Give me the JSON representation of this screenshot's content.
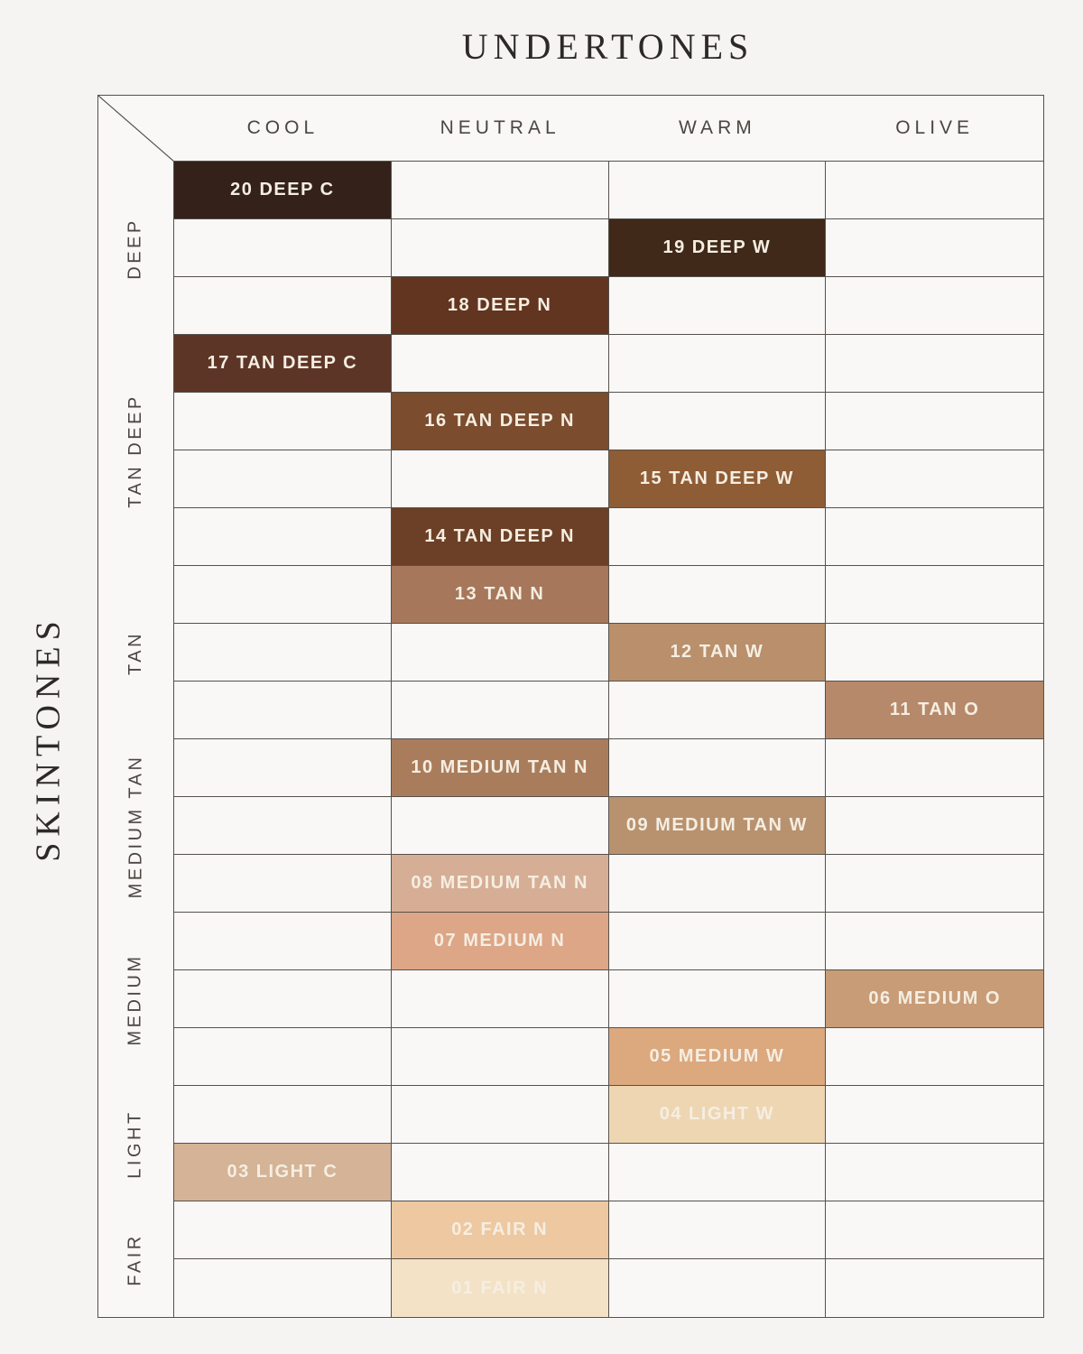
{
  "title": "UNDERTONES",
  "side_title": "SKINTONES",
  "chart_data": {
    "type": "table",
    "title": "UNDERTONES",
    "row_axis_label": "SKINTONES",
    "columns": [
      "COOL",
      "NEUTRAL",
      "WARM",
      "OLIVE"
    ],
    "row_groups": [
      {
        "label": "DEEP",
        "row_count": 3
      },
      {
        "label": "TAN DEEP",
        "row_count": 4
      },
      {
        "label": "TAN",
        "row_count": 3
      },
      {
        "label": "MEDIUM TAN",
        "row_count": 3
      },
      {
        "label": "MEDIUM",
        "row_count": 3
      },
      {
        "label": "LIGHT",
        "row_count": 2
      },
      {
        "label": "FAIR",
        "row_count": 2
      }
    ],
    "shades": [
      {
        "row": 1,
        "group": "DEEP",
        "column": "COOL",
        "label": "20 DEEP C",
        "color": "#33211a"
      },
      {
        "row": 2,
        "group": "DEEP",
        "column": "WARM",
        "label": "19 DEEP W",
        "color": "#402918"
      },
      {
        "row": 3,
        "group": "DEEP",
        "column": "NEUTRAL",
        "label": "18 DEEP N",
        "color": "#623520"
      },
      {
        "row": 4,
        "group": "TAN DEEP",
        "column": "COOL",
        "label": "17 TAN DEEP C",
        "color": "#5d3526"
      },
      {
        "row": 5,
        "group": "TAN DEEP",
        "column": "NEUTRAL",
        "label": "16 TAN DEEP N",
        "color": "#7b4c2e"
      },
      {
        "row": 6,
        "group": "TAN DEEP",
        "column": "WARM",
        "label": "15 TAN DEEP W",
        "color": "#8e5c35"
      },
      {
        "row": 7,
        "group": "TAN DEEP",
        "column": "NEUTRAL",
        "label": "14 TAN DEEP N",
        "color": "#6c4026"
      },
      {
        "row": 8,
        "group": "TAN",
        "column": "NEUTRAL",
        "label": "13 TAN N",
        "color": "#a6775b"
      },
      {
        "row": 9,
        "group": "TAN",
        "column": "WARM",
        "label": "12 TAN W",
        "color": "#b98f6c"
      },
      {
        "row": 10,
        "group": "TAN",
        "column": "OLIVE",
        "label": "11 TAN O",
        "color": "#b6896b"
      },
      {
        "row": 11,
        "group": "MEDIUM TAN",
        "column": "NEUTRAL",
        "label": "10 MEDIUM TAN N",
        "color": "#a97d5c"
      },
      {
        "row": 12,
        "group": "MEDIUM TAN",
        "column": "WARM",
        "label": "09 MEDIUM TAN W",
        "color": "#b8926f"
      },
      {
        "row": 13,
        "group": "MEDIUM TAN",
        "column": "NEUTRAL",
        "label": "08 MEDIUM TAN N",
        "color": "#d6ae95"
      },
      {
        "row": 14,
        "group": "MEDIUM",
        "column": "NEUTRAL",
        "label": "07 MEDIUM N",
        "color": "#dca687"
      },
      {
        "row": 15,
        "group": "MEDIUM",
        "column": "OLIVE",
        "label": "06 MEDIUM O",
        "color": "#c89c77"
      },
      {
        "row": 16,
        "group": "MEDIUM",
        "column": "WARM",
        "label": "05 MEDIUM W",
        "color": "#dca87e"
      },
      {
        "row": 17,
        "group": "LIGHT",
        "column": "WARM",
        "label": "04 LIGHT W",
        "color": "#eed6b2"
      },
      {
        "row": 18,
        "group": "LIGHT",
        "column": "COOL",
        "label": "03 LIGHT C",
        "color": "#d5b396"
      },
      {
        "row": 19,
        "group": "FAIR",
        "column": "NEUTRAL",
        "label": "02 FAIR N",
        "color": "#edc8a0"
      },
      {
        "row": 20,
        "group": "FAIR",
        "column": "NEUTRAL",
        "label": "01 FAIR N",
        "color": "#f4e2c6"
      }
    ],
    "layout": {
      "grid_lines": true,
      "column_header_position": "top",
      "row_group_label_position": "left-rotated"
    }
  }
}
